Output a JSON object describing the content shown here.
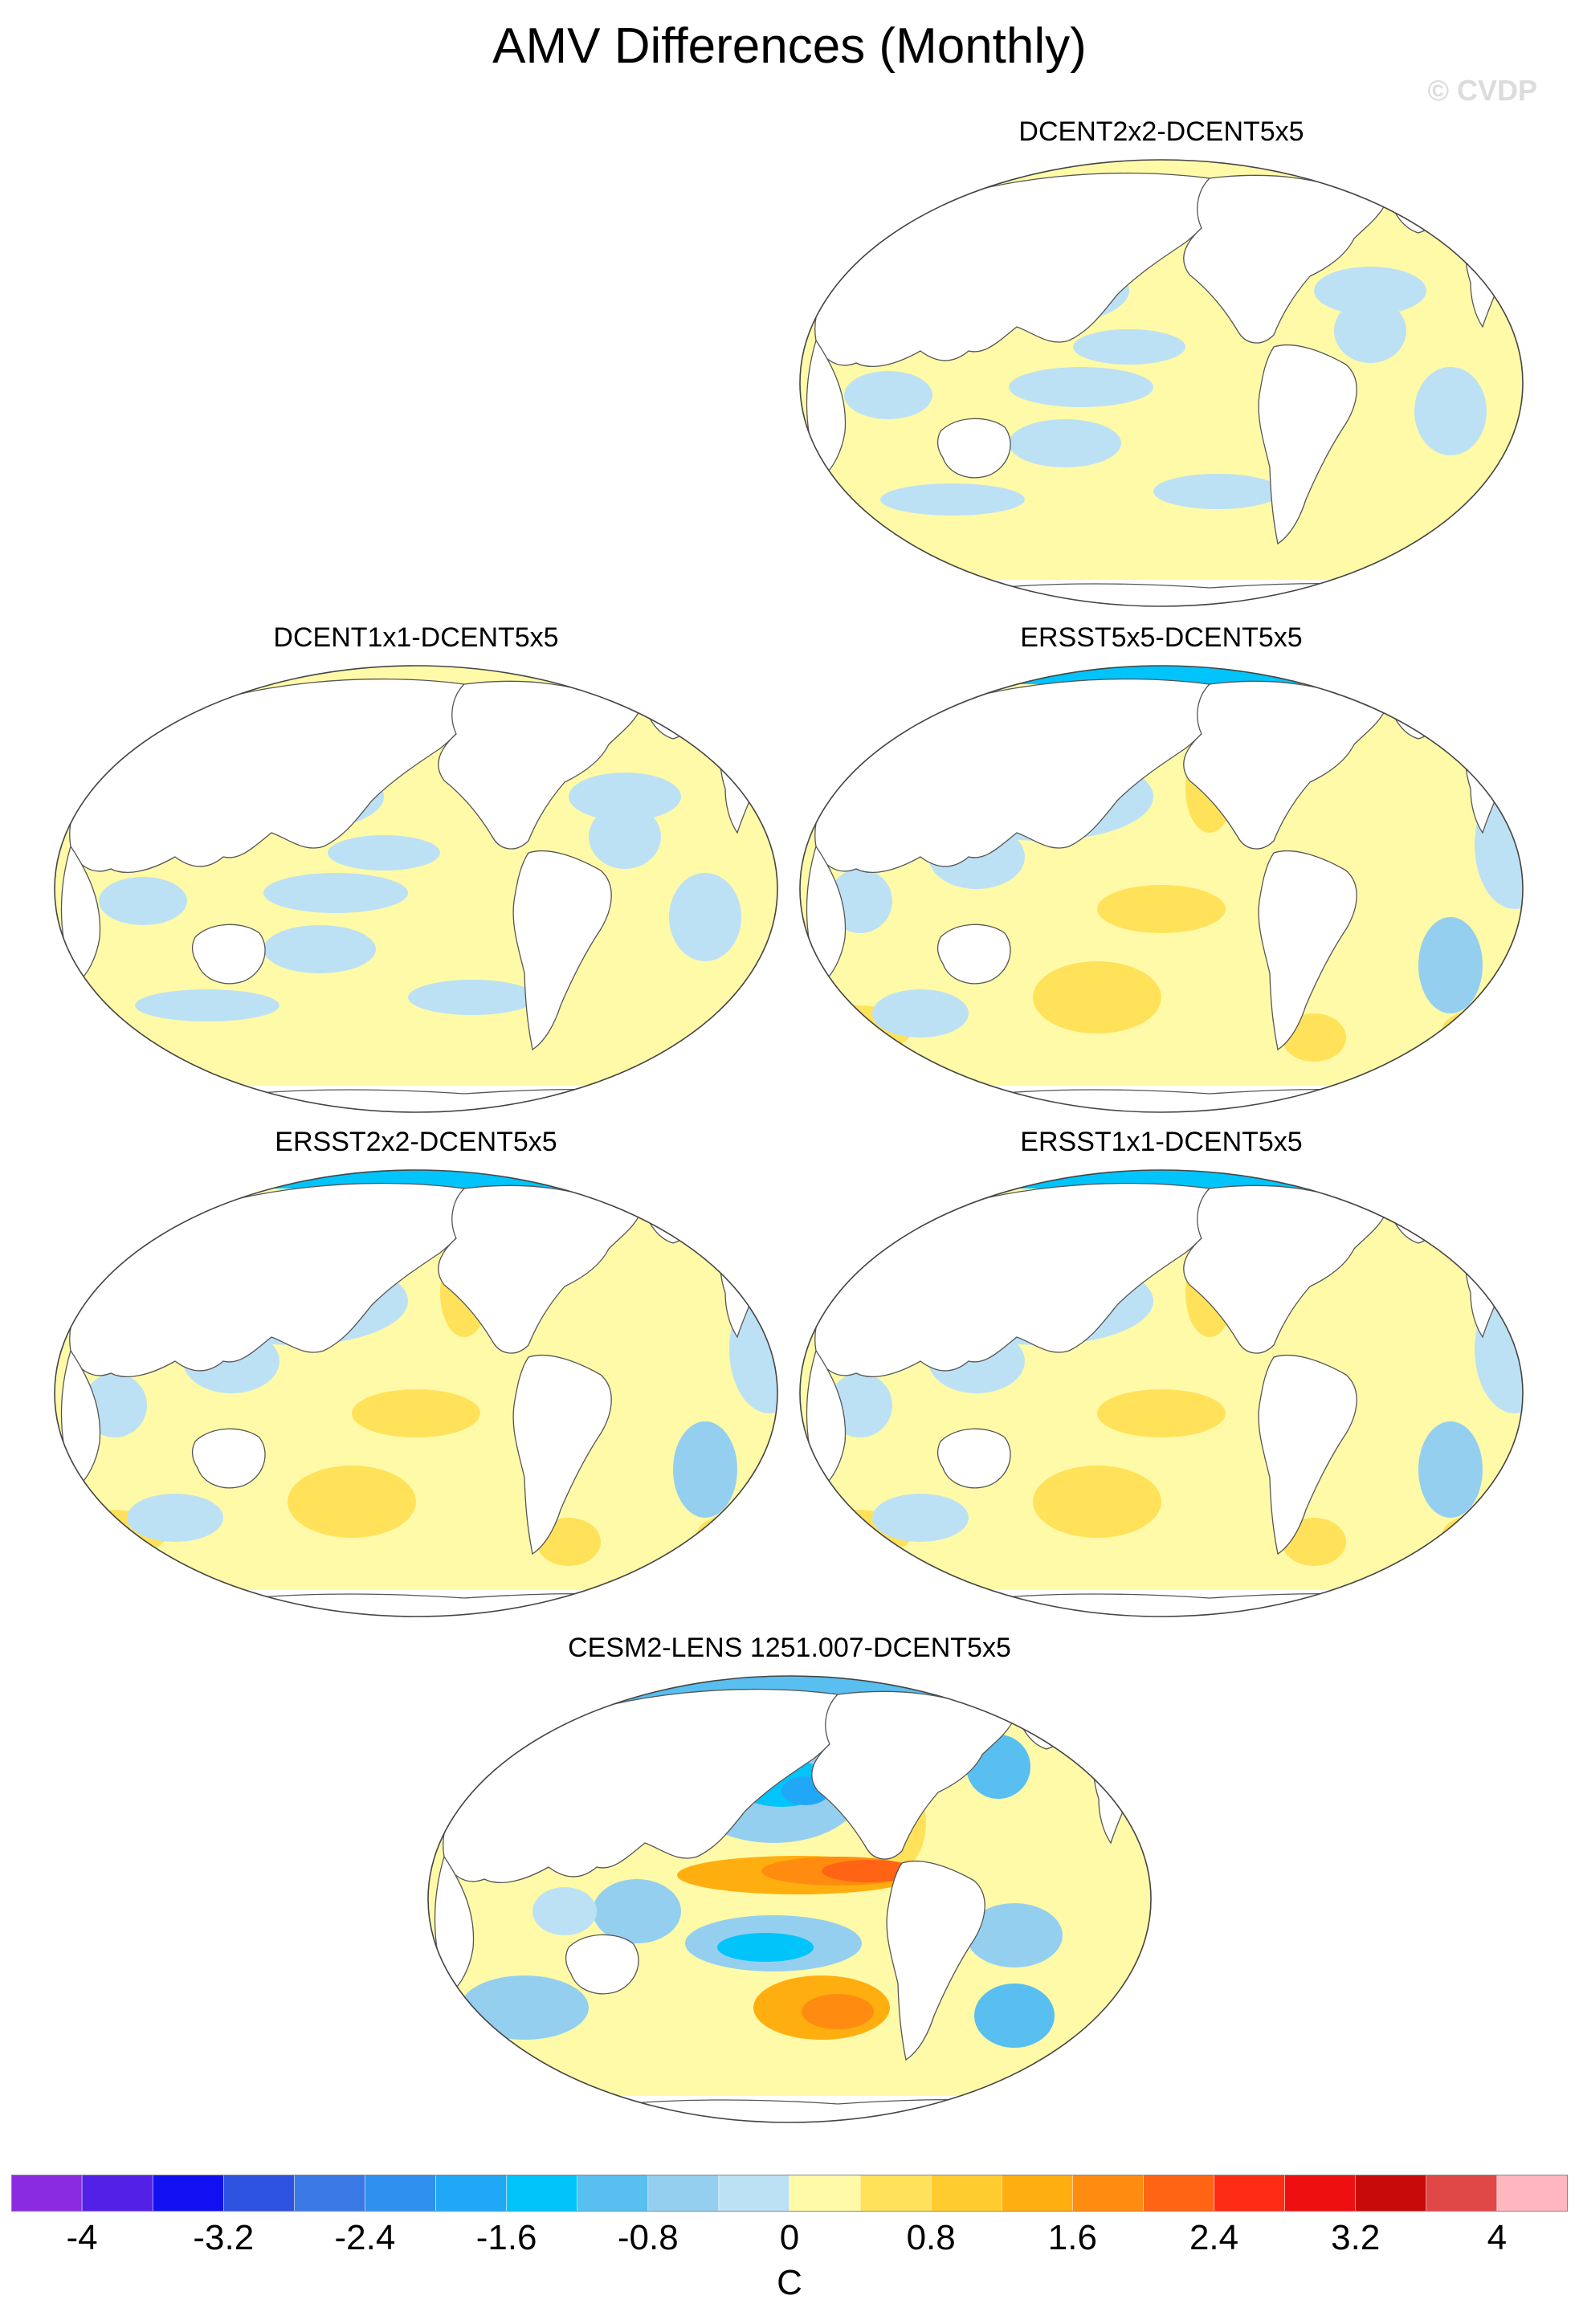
{
  "figure": {
    "title": "AMV Differences (Monthly)",
    "watermark": "© CVDP"
  },
  "panels": [
    {
      "name": "dcent2x2",
      "title": "DCENT2x2-DCENT5x5",
      "pattern": "weak-mixed"
    },
    {
      "name": "dcent1x1",
      "title": "DCENT1x1-DCENT5x5",
      "pattern": "weak-mixed"
    },
    {
      "name": "ersst5x5",
      "title": "ERSST5x5-DCENT5x5",
      "pattern": "warm-pacific-cold-arctic"
    },
    {
      "name": "ersst2x2",
      "title": "ERSST2x2-DCENT5x5",
      "pattern": "warm-pacific-cold-arctic"
    },
    {
      "name": "ersst1x1",
      "title": "ERSST1x1-DCENT5x5",
      "pattern": "warm-pacific-cold-arctic"
    },
    {
      "name": "cesm2",
      "title": "CESM2-LENS 1251.007-DCENT5x5",
      "pattern": "el-nino-like"
    }
  ],
  "colorbar": {
    "unit": "C",
    "tick_labels": [
      "-4",
      "-3.2",
      "-2.4",
      "-1.6",
      "-0.8",
      "0",
      "0.8",
      "1.6",
      "2.4",
      "3.2",
      "4"
    ],
    "colors": [
      "#8a2be2",
      "#5320e8",
      "#1010f0",
      "#2e52e0",
      "#3a78e6",
      "#3090f0",
      "#20a8f6",
      "#00c4fa",
      "#58bff0",
      "#94cff0",
      "#bde1f4",
      "#fffaa8",
      "#ffe25a",
      "#ffcc30",
      "#ffae10",
      "#ff8c10",
      "#ff6414",
      "#ff2c14",
      "#ee1010",
      "#c80a0a",
      "#e04848",
      "#ffb6be"
    ]
  }
}
